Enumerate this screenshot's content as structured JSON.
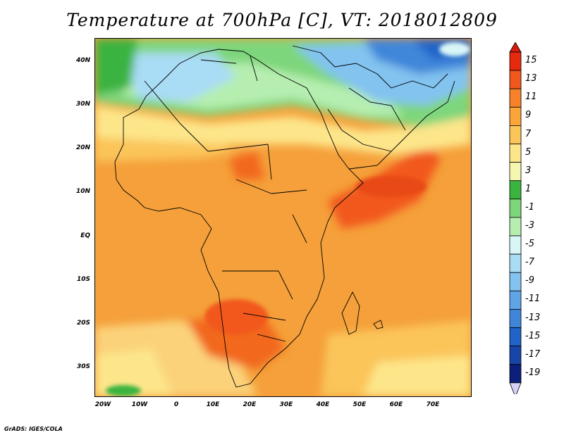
{
  "title": "Temperature at 700hPa [C], VT: 2018012809",
  "credit": "GrADS: IGES/COLA",
  "lat_labels": [
    "40N",
    "30N",
    "20N",
    "10N",
    "EQ",
    "10S",
    "20S",
    "30S"
  ],
  "lon_labels": [
    "20W",
    "10W",
    "0",
    "10E",
    "20E",
    "30E",
    "40E",
    "50E",
    "60E",
    "70E"
  ],
  "colorbar": {
    "labels": [
      "15",
      "13",
      "11",
      "9",
      "7",
      "5",
      "3",
      "1",
      "-1",
      "-3",
      "-5",
      "-7",
      "-9",
      "-11",
      "-13",
      "-15",
      "-17",
      "-19"
    ],
    "colors": [
      "#e62a10",
      "#f2581e",
      "#f7822b",
      "#f9a53a",
      "#fbc55a",
      "#fde68a",
      "#f5f7b0",
      "#3bb33f",
      "#7ed67b",
      "#b6eeb0",
      "#d9f6f6",
      "#a9dcf5",
      "#82c3ef",
      "#5fa5e6",
      "#3f86d9",
      "#2064c8",
      "#1845a8",
      "#0c1f7a"
    ],
    "top_arrow_color": "#d61c0c",
    "bottom_arrow_color": "#d8d0f5"
  }
}
